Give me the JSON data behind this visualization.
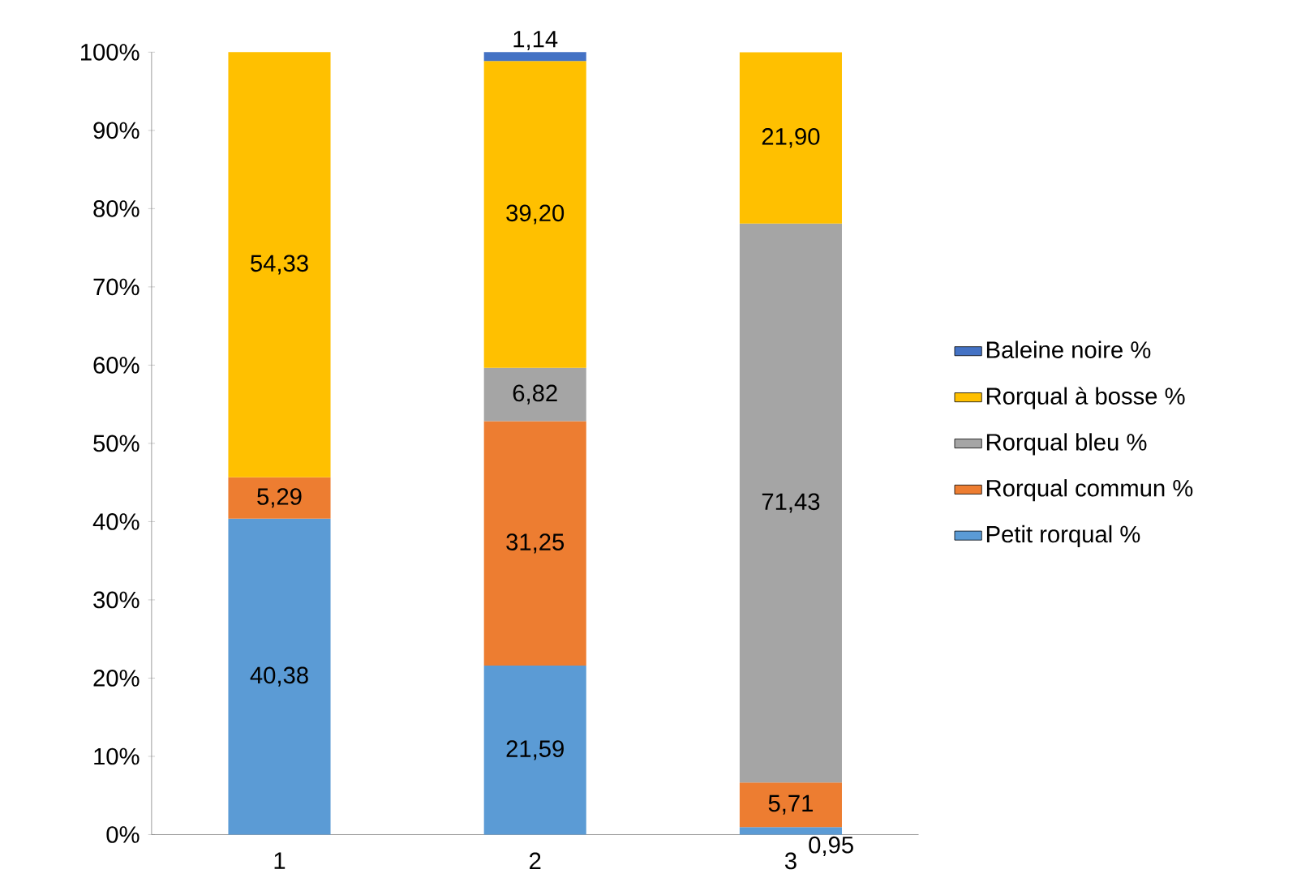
{
  "chart_data": {
    "type": "bar",
    "stacked": true,
    "categories": [
      "1",
      "2",
      "3"
    ],
    "series": [
      {
        "name": "Petit rorqual %",
        "color": "#5b9bd5",
        "values": [
          40.38,
          21.59,
          0.95
        ],
        "value_labels": [
          "40,38",
          "21,59",
          "0,95"
        ]
      },
      {
        "name": "Rorqual commun %",
        "color": "#ed7d31",
        "values": [
          5.29,
          31.25,
          5.71
        ],
        "value_labels": [
          "5,29",
          "31,25",
          "5,71"
        ]
      },
      {
        "name": "Rorqual bleu %",
        "color": "#a5a5a5",
        "values": [
          null,
          6.82,
          71.43
        ],
        "value_labels": [
          null,
          "6,82",
          "71,43"
        ]
      },
      {
        "name": "Rorqual à bosse %",
        "color": "#ffc000",
        "values": [
          54.33,
          39.2,
          21.9
        ],
        "value_labels": [
          "54,33",
          "39,20",
          "21,90"
        ]
      },
      {
        "name": "Baleine noire %",
        "color": "#4472c4",
        "values": [
          null,
          1.14,
          null
        ],
        "value_labels": [
          null,
          "1,14",
          null
        ]
      }
    ],
    "ylim": [
      0,
      100
    ],
    "yticks": [
      {
        "value": 0,
        "label": "0%"
      },
      {
        "value": 10,
        "label": "10%"
      },
      {
        "value": 20,
        "label": "20%"
      },
      {
        "value": 30,
        "label": "30%"
      },
      {
        "value": 40,
        "label": "40%"
      },
      {
        "value": 50,
        "label": "50%"
      },
      {
        "value": 60,
        "label": "60%"
      },
      {
        "value": 70,
        "label": "70%"
      },
      {
        "value": 80,
        "label": "80%"
      },
      {
        "value": 90,
        "label": "90%"
      },
      {
        "value": 100,
        "label": "100%"
      }
    ],
    "grid": false,
    "legend": "right"
  }
}
